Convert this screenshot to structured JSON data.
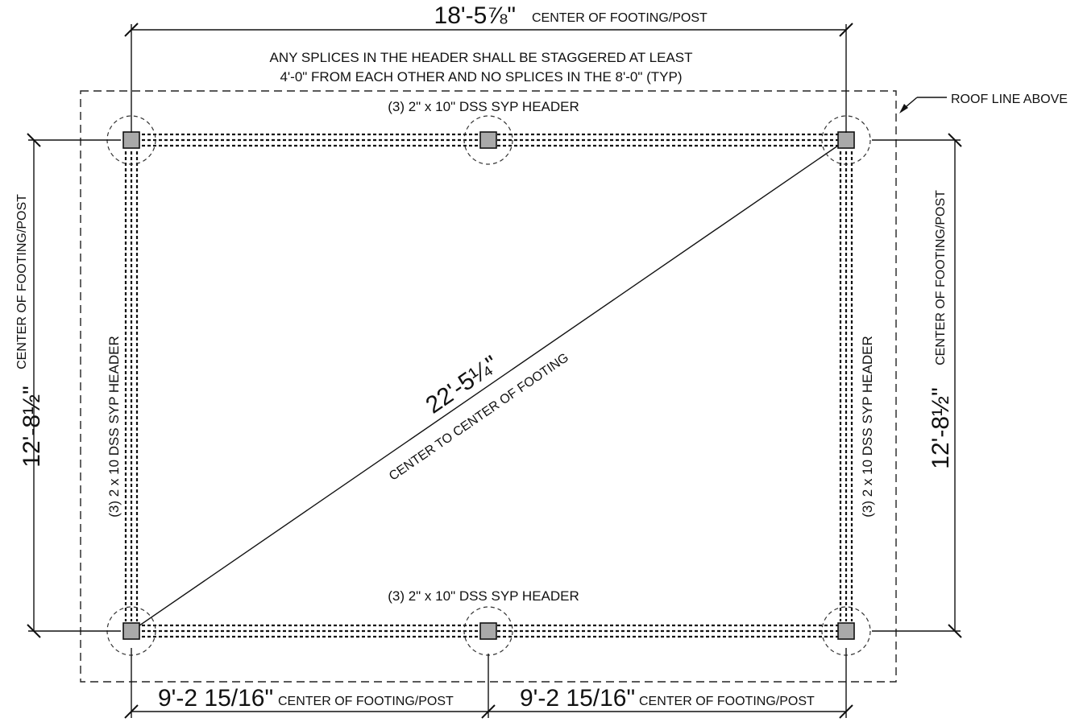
{
  "dimensions": {
    "top": {
      "value": "18'-5⅞\"",
      "label": "CENTER OF FOOTING/POST"
    },
    "left": {
      "value": "12'-8½\"",
      "label": "CENTER OF FOOTING/POST"
    },
    "right": {
      "value": "12'-8½\"",
      "label": "CENTER OF FOOTING/POST"
    },
    "bottom_left": {
      "value": "9'-2 15/16\"",
      "label": "CENTER OF FOOTING/POST"
    },
    "bottom_right": {
      "value": "9'-2 15/16\"",
      "label": "CENTER OF FOOTING/POST"
    },
    "diagonal": {
      "value": "22'-5¼\"",
      "label": "CENTER TO CENTER OF FOOTING"
    }
  },
  "notes": {
    "splice_line1": "ANY SPLICES IN THE HEADER SHALL BE STAGGERED AT LEAST",
    "splice_line2": "4'-0\" FROM EACH OTHER AND NO SPLICES IN THE 8'-0\" (TYP)",
    "roof_line": "ROOF LINE ABOVE"
  },
  "headers": {
    "top": "(3) 2\" x 10\" DSS SYP HEADER",
    "bottom": "(3) 2\" x 10\" DSS SYP HEADER",
    "left": "(3) 2 x 10 DSS SYP HEADER",
    "right": "(3) 2 x 10 DSS SYP HEADER"
  }
}
